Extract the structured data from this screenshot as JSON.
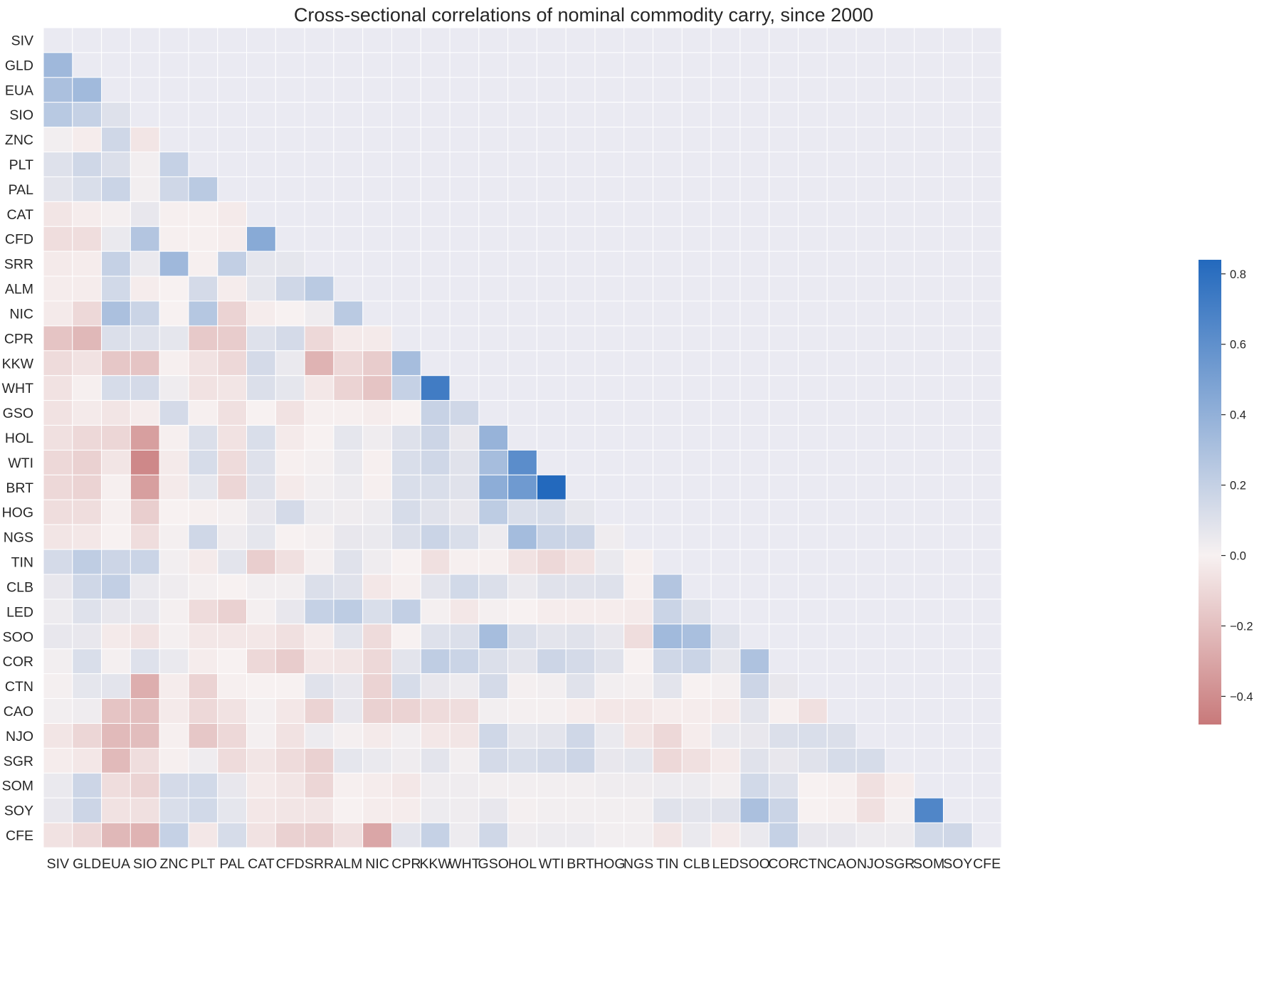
{
  "chart_data": {
    "type": "heatmap",
    "title": "Cross-sectional correlations of nominal commodity carry, since 2000",
    "xlabel": "",
    "ylabel": "",
    "labels": [
      "SIV",
      "GLD",
      "EUA",
      "SIO",
      "ZNC",
      "PLT",
      "PAL",
      "CAT",
      "CFD",
      "SRR",
      "ALM",
      "NIC",
      "CPR",
      "KKW",
      "WHT",
      "GSO",
      "HOL",
      "WTI",
      "BRT",
      "HOG",
      "NGS",
      "TIN",
      "CLB",
      "LED",
      "SOO",
      "COR",
      "CTN",
      "CAO",
      "NJO",
      "SGR",
      "SOM",
      "SOY",
      "CFE"
    ],
    "mask": "upper triangle including diagonal",
    "colorbar": {
      "min": -0.48,
      "max": 0.84,
      "ticks": [
        -0.4,
        -0.2,
        0.0,
        0.2,
        0.4,
        0.6,
        0.8
      ],
      "tick_labels": [
        "−0.4",
        "−0.2",
        "0.0",
        "0.2",
        "0.4",
        "0.6",
        "0.8"
      ],
      "low_color": "#c8797a",
      "mid_color": "#f7f1f1",
      "high_color": "#2369bd"
    },
    "mask_color": "#eaeaf2",
    "grid_color": "#ffffff",
    "rows": [
      [],
      [
        0.35
      ],
      [
        0.3,
        0.34
      ],
      [
        0.25,
        0.2,
        0.1
      ],
      [
        0.02,
        -0.02,
        0.16,
        -0.05
      ],
      [
        0.1,
        0.16,
        0.11,
        0.02,
        0.2
      ],
      [
        0.08,
        0.12,
        0.18,
        0.02,
        0.16,
        0.24
      ],
      [
        -0.05,
        -0.02,
        0.01,
        0.06,
        -0.01,
        -0.01,
        -0.03
      ],
      [
        -0.08,
        -0.08,
        0.05,
        0.27,
        -0.01,
        -0.01,
        -0.02,
        0.44
      ],
      [
        -0.03,
        -0.02,
        0.2,
        0.05,
        0.35,
        -0.01,
        0.21,
        0.07,
        0.07
      ],
      [
        -0.02,
        -0.02,
        0.15,
        -0.02,
        0.0,
        0.14,
        -0.02,
        0.07,
        0.16,
        0.24
      ],
      [
        -0.03,
        -0.1,
        0.3,
        0.18,
        0.0,
        0.26,
        -0.12,
        -0.02,
        0.0,
        0.03,
        0.24
      ],
      [
        -0.18,
        -0.23,
        0.11,
        0.1,
        0.07,
        -0.16,
        -0.15,
        0.1,
        0.14,
        -0.1,
        -0.03,
        -0.03
      ],
      [
        -0.09,
        -0.06,
        -0.17,
        -0.18,
        -0.01,
        -0.06,
        -0.1,
        0.14,
        0.05,
        -0.25,
        -0.1,
        -0.15,
        0.32
      ],
      [
        -0.06,
        -0.01,
        0.13,
        0.14,
        0.03,
        -0.06,
        -0.05,
        0.11,
        0.07,
        -0.04,
        -0.12,
        -0.18,
        0.2,
        0.72
      ],
      [
        -0.06,
        -0.03,
        -0.05,
        -0.02,
        0.14,
        -0.01,
        -0.07,
        0.0,
        -0.06,
        -0.01,
        -0.01,
        -0.02,
        0.0,
        0.19,
        0.16
      ],
      [
        -0.07,
        -0.1,
        -0.11,
        -0.33,
        -0.01,
        0.11,
        -0.06,
        0.12,
        -0.03,
        0.0,
        0.07,
        0.03,
        0.1,
        0.17,
        0.06,
        0.38
      ],
      [
        -0.1,
        -0.13,
        -0.05,
        -0.42,
        -0.03,
        0.13,
        -0.09,
        0.1,
        -0.01,
        0.01,
        0.05,
        -0.01,
        0.12,
        0.16,
        0.09,
        0.32,
        0.62
      ],
      [
        -0.1,
        -0.12,
        -0.01,
        -0.33,
        -0.03,
        0.07,
        -0.11,
        0.09,
        -0.03,
        0.02,
        0.04,
        -0.01,
        0.12,
        0.12,
        0.09,
        0.42,
        0.54,
        0.84
      ],
      [
        -0.08,
        -0.08,
        -0.01,
        -0.14,
        0.0,
        -0.01,
        0.01,
        0.06,
        0.14,
        0.04,
        0.03,
        0.04,
        0.13,
        0.09,
        0.06,
        0.23,
        0.12,
        0.13,
        0.07
      ],
      [
        -0.05,
        -0.04,
        0.0,
        -0.08,
        0.01,
        0.16,
        0.03,
        0.07,
        0.0,
        0.01,
        0.06,
        0.05,
        0.11,
        0.18,
        0.12,
        0.04,
        0.33,
        0.18,
        0.17,
        0.03
      ],
      [
        0.14,
        0.22,
        0.17,
        0.18,
        0.02,
        -0.03,
        0.08,
        -0.14,
        -0.07,
        0.01,
        0.09,
        0.03,
        0.0,
        -0.07,
        -0.01,
        -0.01,
        -0.06,
        -0.1,
        -0.06,
        0.05,
        -0.01
      ],
      [
        0.06,
        0.16,
        0.21,
        0.05,
        0.03,
        0.01,
        0.0,
        0.02,
        0.02,
        0.11,
        0.09,
        -0.04,
        -0.01,
        0.08,
        0.15,
        0.11,
        0.05,
        0.09,
        0.09,
        0.1,
        -0.01,
        0.27
      ],
      [
        0.04,
        0.1,
        0.06,
        0.06,
        0.01,
        -0.09,
        -0.13,
        0.01,
        0.06,
        0.2,
        0.23,
        0.12,
        0.21,
        0.01,
        -0.04,
        0.01,
        0.0,
        -0.02,
        -0.02,
        -0.02,
        -0.03,
        0.18,
        0.1
      ],
      [
        0.06,
        0.06,
        -0.03,
        -0.06,
        0.01,
        -0.04,
        -0.04,
        -0.04,
        -0.07,
        -0.02,
        0.08,
        -0.09,
        0.0,
        0.1,
        0.11,
        0.32,
        0.11,
        0.08,
        0.09,
        0.06,
        -0.08,
        0.34,
        0.31,
        0.1
      ],
      [
        0.02,
        0.12,
        0.01,
        0.1,
        0.05,
        -0.02,
        0.0,
        -0.1,
        -0.15,
        -0.04,
        -0.05,
        -0.1,
        0.08,
        0.22,
        0.18,
        0.11,
        0.08,
        0.17,
        0.14,
        0.09,
        0.0,
        0.16,
        0.18,
        0.07,
        0.29
      ],
      [
        0.01,
        0.07,
        0.08,
        -0.27,
        -0.02,
        -0.12,
        -0.01,
        0.0,
        0.0,
        0.09,
        0.06,
        -0.12,
        0.13,
        0.06,
        0.04,
        0.14,
        0.01,
        0.02,
        0.09,
        0.02,
        0.01,
        0.08,
        0.0,
        0.01,
        0.17,
        0.06
      ],
      [
        0.02,
        0.03,
        -0.18,
        -0.2,
        -0.03,
        -0.1,
        -0.06,
        0.01,
        -0.04,
        -0.12,
        0.06,
        -0.13,
        -0.12,
        -0.09,
        -0.08,
        0.02,
        0.01,
        0.01,
        -0.02,
        -0.04,
        -0.04,
        -0.02,
        -0.02,
        -0.03,
        0.08,
        -0.01,
        -0.07
      ],
      [
        -0.05,
        -0.11,
        -0.22,
        -0.21,
        -0.01,
        -0.17,
        -0.1,
        0.01,
        -0.06,
        0.04,
        0.01,
        -0.03,
        0.02,
        -0.04,
        -0.05,
        0.16,
        0.07,
        0.08,
        0.16,
        0.05,
        -0.05,
        -0.1,
        -0.02,
        0.05,
        0.06,
        0.11,
        0.12,
        0.11
      ],
      [
        -0.02,
        -0.04,
        -0.22,
        -0.08,
        -0.01,
        0.03,
        -0.09,
        -0.05,
        -0.09,
        -0.13,
        0.07,
        0.05,
        0.03,
        0.08,
        0.02,
        0.14,
        0.12,
        0.14,
        0.17,
        0.06,
        0.07,
        -0.1,
        -0.07,
        -0.03,
        0.09,
        0.06,
        0.09,
        0.13,
        0.13
      ],
      [
        0.05,
        0.17,
        -0.08,
        -0.12,
        0.14,
        0.15,
        0.06,
        -0.03,
        -0.05,
        -0.11,
        -0.01,
        -0.02,
        -0.04,
        0.03,
        0.03,
        0.02,
        0.02,
        0.02,
        0.02,
        0.03,
        0.03,
        0.04,
        0.04,
        0.02,
        0.15,
        0.1,
        0.0,
        -0.01,
        -0.07,
        -0.02
      ],
      [
        0.06,
        0.17,
        -0.06,
        -0.07,
        0.12,
        0.15,
        0.07,
        -0.04,
        -0.05,
        -0.05,
        0.0,
        -0.02,
        -0.02,
        0.04,
        0.03,
        0.06,
        0.01,
        0.02,
        0.02,
        0.02,
        0.02,
        0.09,
        0.08,
        0.09,
        0.3,
        0.18,
        0.0,
        -0.01,
        -0.07,
        0.01,
        0.66
      ],
      [
        -0.06,
        -0.1,
        -0.23,
        -0.25,
        0.2,
        -0.04,
        0.13,
        -0.06,
        -0.13,
        -0.14,
        -0.07,
        -0.3,
        0.08,
        0.2,
        0.04,
        0.16,
        0.03,
        0.04,
        0.04,
        0.02,
        0.02,
        -0.05,
        0.05,
        -0.03,
        0.05,
        0.2,
        0.06,
        0.06,
        0.04,
        0.04,
        0.15,
        0.16
      ]
    ]
  }
}
